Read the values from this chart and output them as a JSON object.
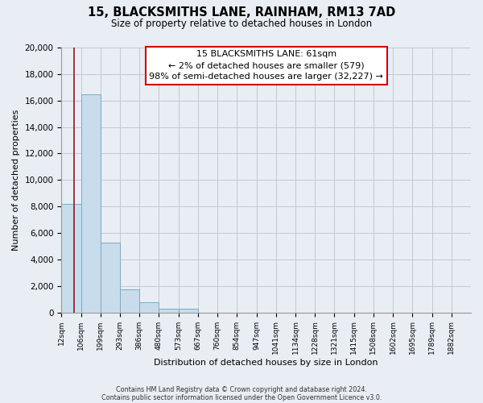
{
  "title1": "15, BLACKSMITHS LANE, RAINHAM, RM13 7AD",
  "title2": "Size of property relative to detached houses in London",
  "xlabel": "Distribution of detached houses by size in London",
  "ylabel": "Number of detached properties",
  "bin_labels": [
    "12sqm",
    "106sqm",
    "199sqm",
    "293sqm",
    "386sqm",
    "480sqm",
    "573sqm",
    "667sqm",
    "760sqm",
    "854sqm",
    "947sqm",
    "1041sqm",
    "1134sqm",
    "1228sqm",
    "1321sqm",
    "1415sqm",
    "1508sqm",
    "1602sqm",
    "1695sqm",
    "1789sqm",
    "1882sqm"
  ],
  "bar_heights": [
    8200,
    16500,
    5300,
    1750,
    780,
    300,
    250,
    0,
    0,
    0,
    0,
    0,
    0,
    0,
    0,
    0,
    0,
    0,
    0,
    0
  ],
  "bar_color": "#c8dcec",
  "bar_edge_color": "#7aaac8",
  "ylim": [
    0,
    20000
  ],
  "yticks": [
    0,
    2000,
    4000,
    6000,
    8000,
    10000,
    12000,
    14000,
    16000,
    18000,
    20000
  ],
  "annotation_line1": "15 BLACKSMITHS LANE: 61sqm",
  "annotation_line2": "← 2% of detached houses are smaller (579)",
  "annotation_line3": "98% of semi-detached houses are larger (32,227) →",
  "red_line_x": 0.63,
  "footer1": "Contains HM Land Registry data © Crown copyright and database right 2024.",
  "footer2": "Contains public sector information licensed under the Open Government Licence v3.0.",
  "bg_color": "#e8eef4",
  "plot_bg": "#e8eef4",
  "grid_color": "#c0c8d4"
}
